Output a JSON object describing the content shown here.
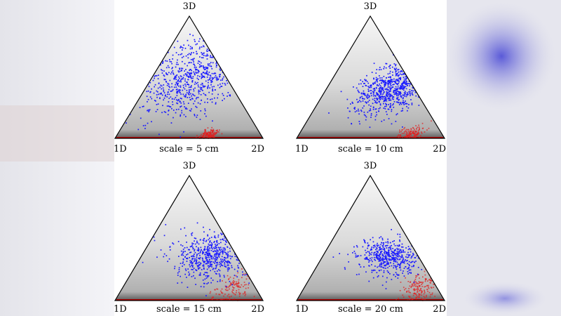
{
  "colors": {
    "primary_points": "#1a1aff",
    "secondary_points": "#e02020",
    "density": "#555555"
  },
  "chart_data": [
    {
      "type": "scatter",
      "subtype": "ternary",
      "title": "scale = 5 cm",
      "vertex_labels": {
        "left": "1D",
        "right": "2D",
        "top": "3D"
      },
      "primary_cluster": {
        "center": {
          "1D": 0.22,
          "2D": 0.28,
          "3D": 0.5
        },
        "spread": 0.17,
        "count": 650
      },
      "secondary_cluster": {
        "center": {
          "1D": 0.35,
          "2D": 0.62,
          "3D": 0.03
        },
        "spread": 0.03,
        "count": 160
      }
    },
    {
      "type": "scatter",
      "subtype": "ternary",
      "title": "scale = 10 cm",
      "vertex_labels": {
        "left": "1D",
        "right": "2D",
        "top": "3D"
      },
      "primary_cluster": {
        "center": {
          "1D": 0.15,
          "2D": 0.44,
          "3D": 0.41
        },
        "spread": 0.11,
        "count": 650
      },
      "secondary_cluster": {
        "center": {
          "1D": 0.2,
          "2D": 0.76,
          "3D": 0.04
        },
        "spread": 0.04,
        "count": 140
      }
    },
    {
      "type": "scatter",
      "subtype": "ternary",
      "title": "scale = 15 cm",
      "vertex_labels": {
        "left": "1D",
        "right": "2D",
        "top": "3D"
      },
      "primary_cluster": {
        "center": {
          "1D": 0.18,
          "2D": 0.47,
          "3D": 0.35
        },
        "spread": 0.09,
        "count": 550
      },
      "secondary_cluster": {
        "center": {
          "1D": 0.15,
          "2D": 0.75,
          "3D": 0.1
        },
        "spread": 0.06,
        "count": 130
      }
    },
    {
      "type": "scatter",
      "subtype": "ternary",
      "title": "scale = 20 cm",
      "vertex_labels": {
        "left": "1D",
        "right": "2D",
        "top": "3D"
      },
      "primary_cluster": {
        "center": {
          "1D": 0.2,
          "2D": 0.45,
          "3D": 0.35
        },
        "spread": 0.065,
        "count": 500
      },
      "secondary_cluster": {
        "center": {
          "1D": 0.12,
          "2D": 0.78,
          "3D": 0.1
        },
        "spread": 0.06,
        "count": 170
      }
    }
  ]
}
